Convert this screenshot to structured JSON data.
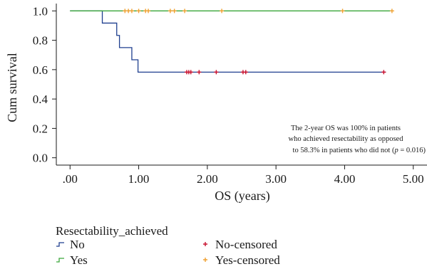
{
  "chart_data": {
    "type": "line",
    "subtype": "kaplan-meier",
    "xlabel": "OS (years)",
    "ylabel": "Cum survival",
    "xlim": [
      -0.2,
      5.2
    ],
    "ylim": [
      -0.05,
      1.05
    ],
    "x_ticks": [
      0,
      1,
      2,
      3,
      4,
      5
    ],
    "x_tick_labels": [
      ".00",
      "1.00",
      "2.00",
      "3.00",
      "4.00",
      "5.00"
    ],
    "y_ticks": [
      0,
      0.2,
      0.4,
      0.6,
      0.8,
      1.0
    ],
    "y_tick_labels": [
      "0.0",
      "0.2",
      "0.4",
      "0.6",
      "0.8",
      "1.0"
    ],
    "grid": false,
    "annotation": {
      "line1": "The 2-year OS was 100% in patients",
      "line2": "who achieved resectability as opposed",
      "line3_prefix": "to 58.3% in patients who did not (",
      "line3_p": "p",
      "line3_suffix": " = 0.016)"
    },
    "legend": {
      "title": "Resectability_achieved",
      "placement": "bottom",
      "entries": [
        {
          "label": "No",
          "kind": "step",
          "series": "No"
        },
        {
          "label": "Yes",
          "kind": "step",
          "series": "Yes"
        },
        {
          "label": "No-censored",
          "kind": "censor",
          "series": "No"
        },
        {
          "label": "Yes-censored",
          "kind": "censor",
          "series": "Yes"
        }
      ]
    },
    "series": [
      {
        "name": "No",
        "color": "#1f3f8f",
        "censor_color": "#c8102e",
        "steps": [
          [
            0,
            1.0
          ],
          [
            0.47,
            0.917
          ],
          [
            0.68,
            0.833
          ],
          [
            0.72,
            0.75
          ],
          [
            0.9,
            0.667
          ],
          [
            0.99,
            0.583
          ],
          [
            4.6,
            0.583
          ]
        ],
        "censored_x": [
          1.7,
          1.73,
          1.76,
          1.88,
          2.13,
          2.52,
          2.56,
          4.57
        ],
        "censored_y": 0.583
      },
      {
        "name": "Yes",
        "color": "#3aa63a",
        "censor_color": "#f0a030",
        "steps": [
          [
            0,
            1.0
          ],
          [
            4.7,
            1.0
          ]
        ],
        "censored_x": [
          0.8,
          0.85,
          0.9,
          1.0,
          1.1,
          1.14,
          1.46,
          1.52,
          1.67,
          2.21,
          3.97,
          4.69
        ],
        "censored_y": 1.0
      }
    ]
  }
}
